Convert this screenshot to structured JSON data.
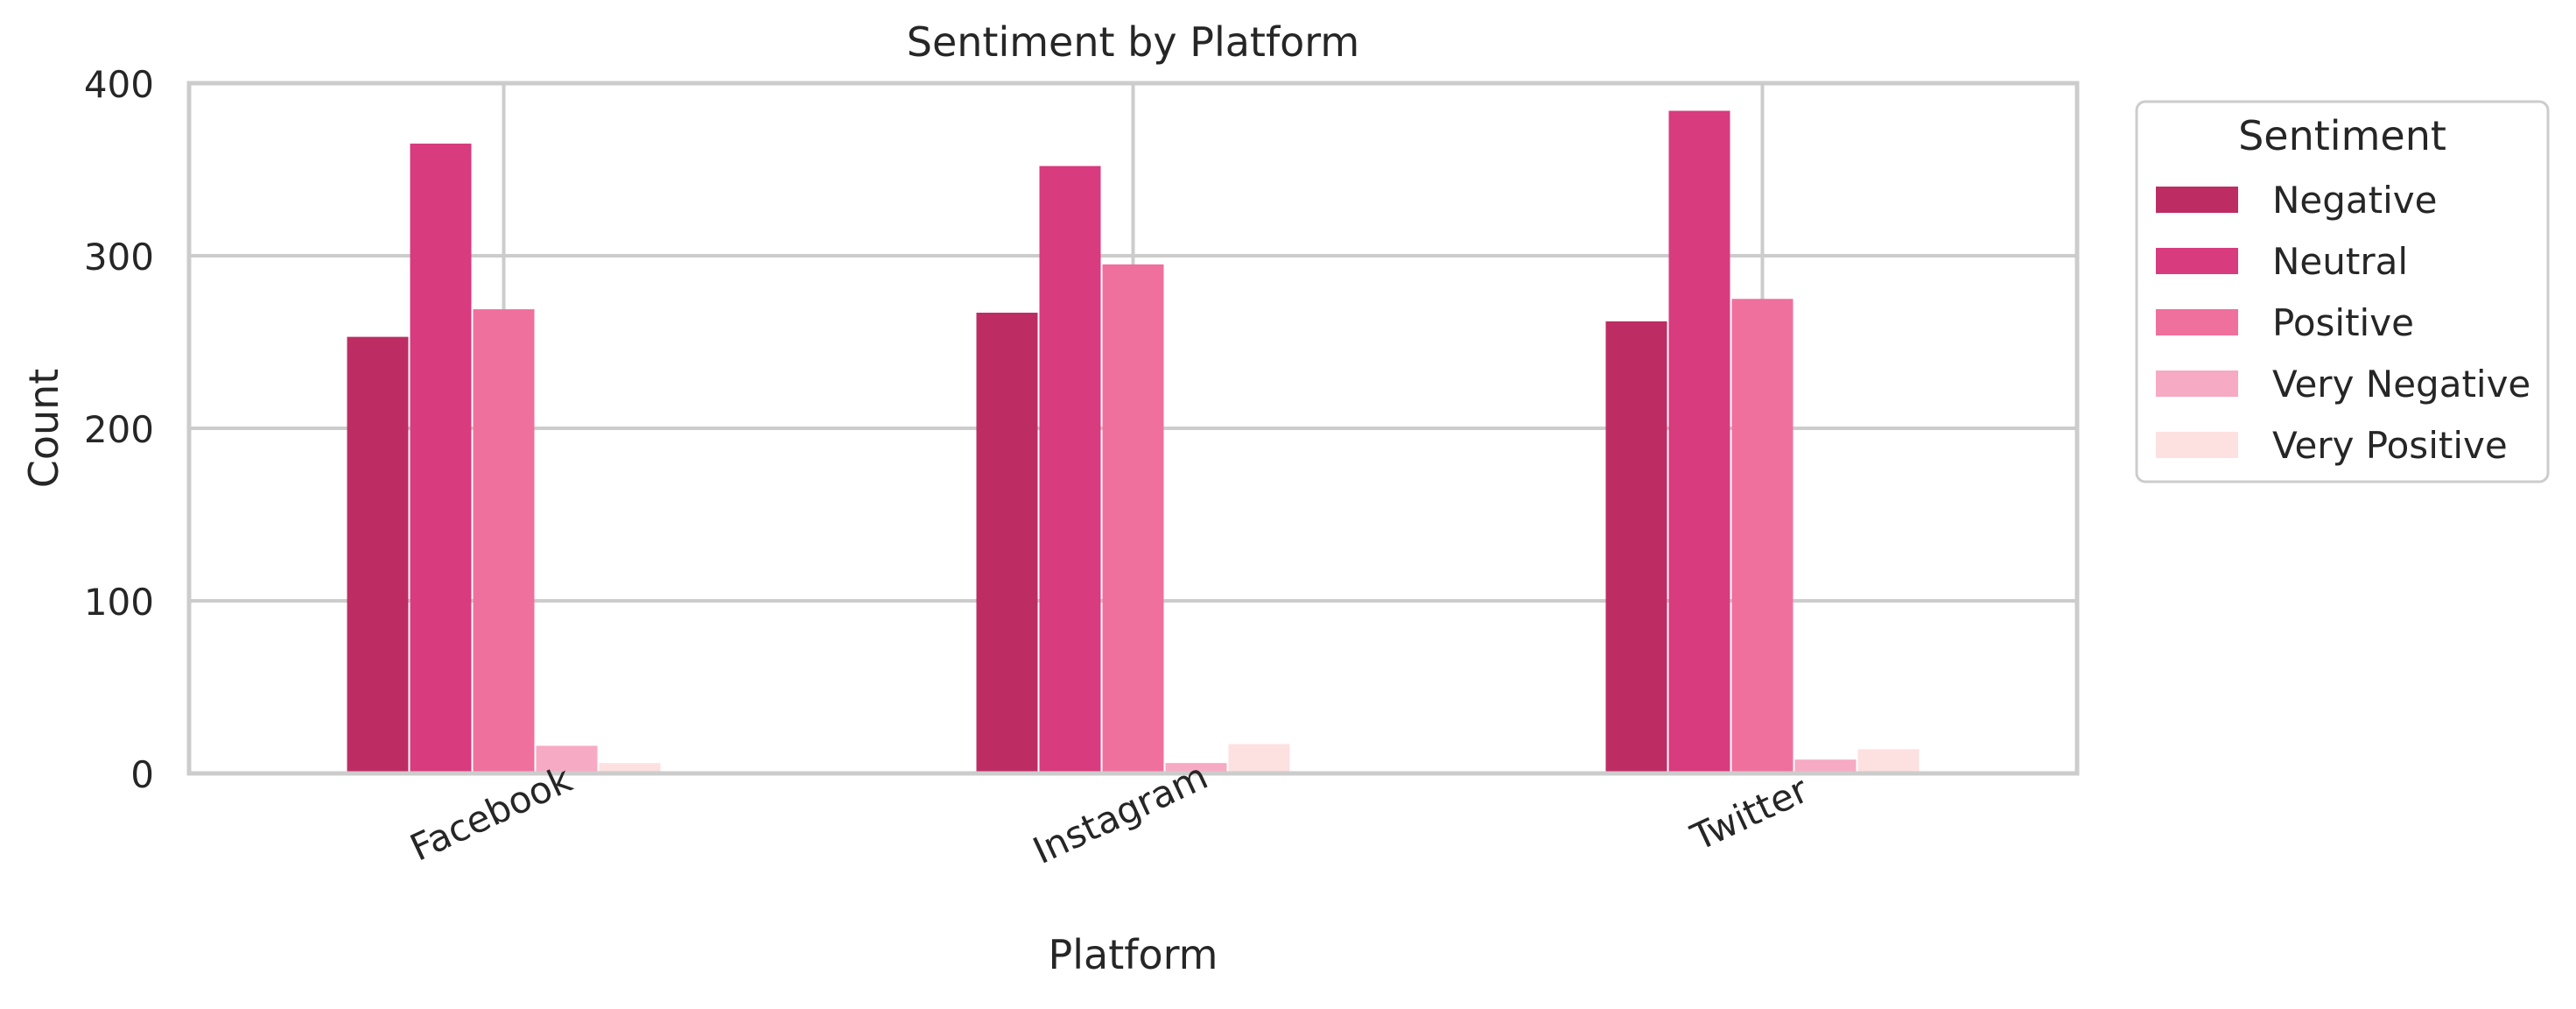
{
  "chart_data": {
    "type": "bar",
    "title": "Sentiment by Platform",
    "xlabel": "Platform",
    "ylabel": "Count",
    "categories": [
      "Facebook",
      "Instagram",
      "Twitter"
    ],
    "ylim": [
      0,
      400
    ],
    "yticks": [
      0,
      100,
      200,
      300,
      400
    ],
    "grid": true,
    "legend": {
      "title": "Sentiment",
      "position": "outside-right-top"
    },
    "series": [
      {
        "name": "Negative",
        "color": "#bd2d64",
        "values": [
          253,
          267,
          262
        ]
      },
      {
        "name": "Neutral",
        "color": "#d83b7e",
        "values": [
          365,
          352,
          384
        ]
      },
      {
        "name": "Positive",
        "color": "#ef709d",
        "values": [
          269,
          295,
          275
        ]
      },
      {
        "name": "Very Negative",
        "color": "#f7aac3",
        "values": [
          16,
          6,
          8
        ]
      },
      {
        "name": "Very Positive",
        "color": "#fde0e0",
        "values": [
          6,
          17,
          14
        ]
      }
    ]
  }
}
